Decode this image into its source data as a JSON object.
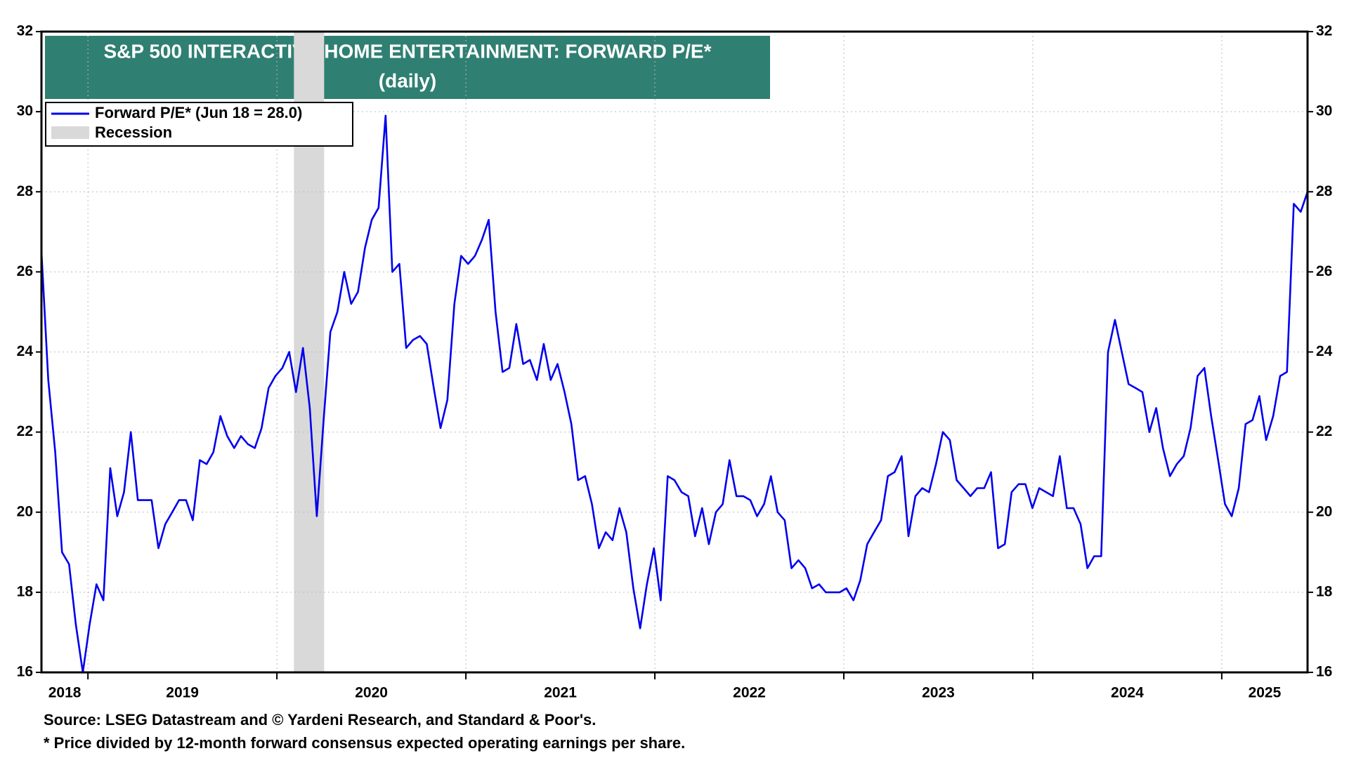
{
  "chart_data": {
    "type": "line",
    "title": "S&P 500 INTERACTIVE HOME ENTERTAINMENT: FORWARD P/E*",
    "subtitle": "(daily)",
    "source": "Source: LSEG Datastream and © Yardeni Research, and Standard & Poor's.",
    "note": "* Price divided by 12-month forward consensus expected operating earnings per share.",
    "legend": "upper left",
    "grid": true,
    "right_axis_labels": true,
    "xlim": [
      2018.754,
      2025.454
    ],
    "xticks": [
      2019,
      2020,
      2021,
      2022,
      2023,
      2024,
      2025
    ],
    "x_labels": [
      2018,
      2019,
      2020,
      2021,
      2022,
      2023,
      2024,
      2025
    ],
    "ylim": [
      16,
      32
    ],
    "yticks": [
      16,
      18,
      20,
      22,
      24,
      26,
      28,
      30,
      32
    ],
    "recession": {
      "label": "Recession",
      "color": "#d9d9d9",
      "x": [
        2020.09,
        2020.25
      ]
    },
    "x": [
      2018.754,
      2018.79,
      2018.827,
      2018.863,
      2018.9,
      2018.936,
      2018.973,
      2019.009,
      2019.045,
      2019.082,
      2019.118,
      2019.155,
      2019.191,
      2019.227,
      2019.264,
      2019.3,
      2019.337,
      2019.373,
      2019.409,
      2019.446,
      2019.482,
      2019.519,
      2019.555,
      2019.592,
      2019.628,
      2019.664,
      2019.701,
      2019.737,
      2019.774,
      2019.81,
      2019.846,
      2019.883,
      2019.919,
      2019.956,
      2019.992,
      2020.029,
      2020.065,
      2020.101,
      2020.138,
      2020.174,
      2020.211,
      2020.247,
      2020.283,
      2020.32,
      2020.356,
      2020.393,
      2020.429,
      2020.466,
      2020.502,
      2020.538,
      2020.575,
      2020.611,
      2020.648,
      2020.684,
      2020.72,
      2020.757,
      2020.793,
      2020.83,
      2020.866,
      2020.902,
      2020.939,
      2020.975,
      2021.012,
      2021.048,
      2021.085,
      2021.121,
      2021.157,
      2021.194,
      2021.23,
      2021.267,
      2021.303,
      2021.339,
      2021.376,
      2021.412,
      2021.449,
      2021.485,
      2021.522,
      2021.558,
      2021.594,
      2021.631,
      2021.667,
      2021.704,
      2021.74,
      2021.776,
      2021.813,
      2021.849,
      2021.886,
      2021.922,
      2021.958,
      2021.995,
      2022.031,
      2022.068,
      2022.104,
      2022.141,
      2022.177,
      2022.213,
      2022.25,
      2022.286,
      2022.323,
      2022.359,
      2022.395,
      2022.432,
      2022.468,
      2022.505,
      2022.541,
      2022.578,
      2022.614,
      2022.65,
      2022.687,
      2022.723,
      2022.76,
      2022.796,
      2022.832,
      2022.869,
      2022.905,
      2022.942,
      2022.978,
      2023.014,
      2023.051,
      2023.087,
      2023.124,
      2023.16,
      2023.197,
      2023.233,
      2023.269,
      2023.306,
      2023.342,
      2023.379,
      2023.415,
      2023.451,
      2023.488,
      2023.524,
      2023.561,
      2023.597,
      2023.634,
      2023.67,
      2023.706,
      2023.743,
      2023.779,
      2023.816,
      2023.852,
      2023.888,
      2023.925,
      2023.961,
      2023.998,
      2024.034,
      2024.071,
      2024.107,
      2024.143,
      2024.18,
      2024.216,
      2024.253,
      2024.289,
      2024.325,
      2024.362,
      2024.398,
      2024.435,
      2024.471,
      2024.507,
      2024.544,
      2024.58,
      2024.617,
      2024.653,
      2024.689,
      2024.726,
      2024.762,
      2024.799,
      2024.835,
      2024.872,
      2024.908,
      2024.944,
      2024.981,
      2025.017,
      2025.053,
      2025.09,
      2025.126,
      2025.163,
      2025.199,
      2025.235,
      2025.272,
      2025.309,
      2025.345,
      2025.381,
      2025.418,
      2025.454
    ],
    "series": [
      {
        "name": "Forward P/E* (Jun 18 = 28.0)",
        "color": "#0000ee",
        "values": [
          26.5,
          23.3,
          21.5,
          19.0,
          18.7,
          17.2,
          16.0,
          17.2,
          18.2,
          17.8,
          21.1,
          19.9,
          20.5,
          22.0,
          20.3,
          20.3,
          20.3,
          19.1,
          19.7,
          20.0,
          20.3,
          20.3,
          19.8,
          21.3,
          21.2,
          21.5,
          22.4,
          21.9,
          21.6,
          21.9,
          21.7,
          21.6,
          22.1,
          23.1,
          23.4,
          23.6,
          24.0,
          23.0,
          24.1,
          22.6,
          19.9,
          22.3,
          24.5,
          25.0,
          26.0,
          25.2,
          25.5,
          26.6,
          27.3,
          27.6,
          29.9,
          26.0,
          26.2,
          24.1,
          24.3,
          24.4,
          24.2,
          23.1,
          22.1,
          22.8,
          25.2,
          26.4,
          26.2,
          26.4,
          26.8,
          27.3,
          25.0,
          23.5,
          23.6,
          24.7,
          23.7,
          23.8,
          23.3,
          24.2,
          23.3,
          23.7,
          23.0,
          22.2,
          20.8,
          20.9,
          20.2,
          19.1,
          19.5,
          19.3,
          20.1,
          19.5,
          18.1,
          17.1,
          18.2,
          19.1,
          17.8,
          20.9,
          20.8,
          20.5,
          20.4,
          19.4,
          20.1,
          19.2,
          20.0,
          20.2,
          21.3,
          20.4,
          20.4,
          20.3,
          19.9,
          20.2,
          20.9,
          20.0,
          19.8,
          18.6,
          18.8,
          18.6,
          18.1,
          18.2,
          18.0,
          18.0,
          18.0,
          18.1,
          17.8,
          18.3,
          19.2,
          19.5,
          19.8,
          20.9,
          21.0,
          21.4,
          19.4,
          20.4,
          20.6,
          20.5,
          21.2,
          22.0,
          21.8,
          20.8,
          20.6,
          20.4,
          20.6,
          20.6,
          21.0,
          19.1,
          19.2,
          20.5,
          20.7,
          20.7,
          20.1,
          20.6,
          20.5,
          20.4,
          21.4,
          20.1,
          20.1,
          19.7,
          18.6,
          18.9,
          18.9,
          24.0,
          24.8,
          24.0,
          23.2,
          23.1,
          23.0,
          22.0,
          22.6,
          21.6,
          20.9,
          21.2,
          21.4,
          22.1,
          23.4,
          23.6,
          22.4,
          21.3,
          20.2,
          19.9,
          20.6,
          22.2,
          22.3,
          22.9,
          21.8,
          22.4,
          23.4,
          23.5,
          27.7,
          27.5,
          28.0
        ]
      }
    ]
  }
}
